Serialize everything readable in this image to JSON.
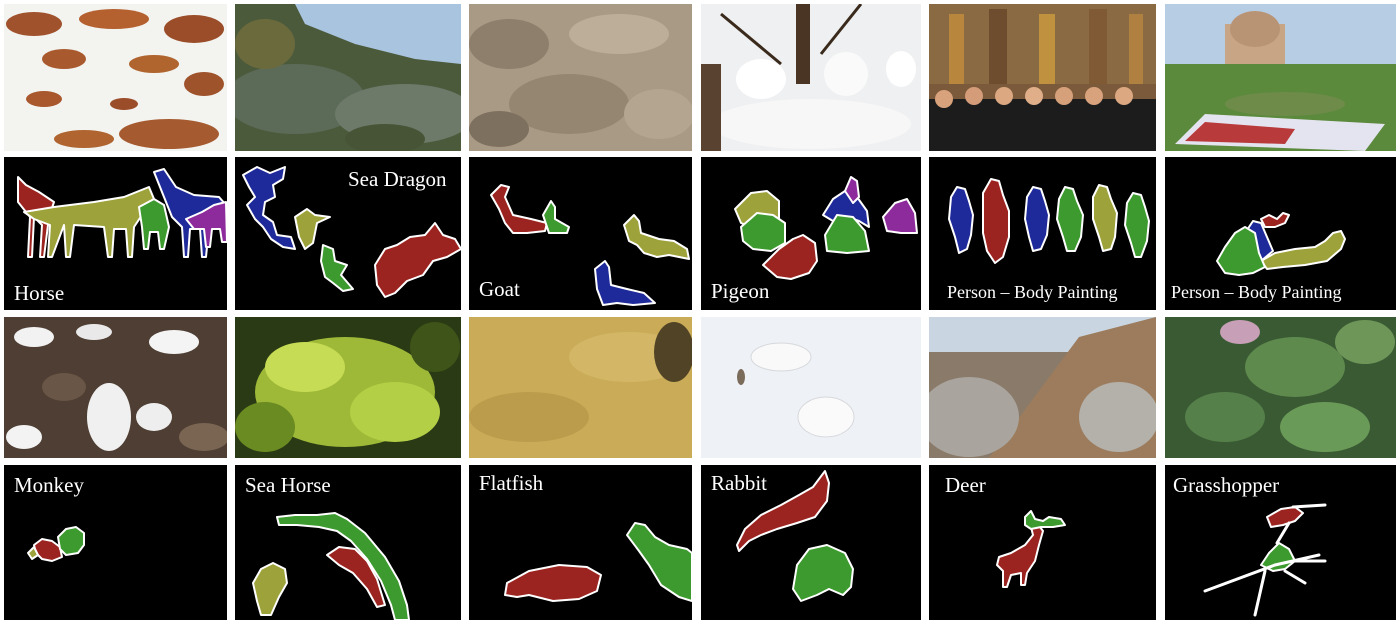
{
  "colors": {
    "red": "#9b2420",
    "green": "#3c9a2e",
    "olive": "#9da23a",
    "blue": "#1f2a9a",
    "purple": "#8d2b9c",
    "mask_bg": "#000000",
    "outline": "#ffffff"
  },
  "row1": {
    "labels": {
      "horse": "Horse",
      "sea_dragon": "Sea Dragon",
      "goat": "Goat",
      "pigeon": "Pigeon",
      "body_painting_1": "Person – Body Painting",
      "body_painting_2": "Person – Body Painting"
    }
  },
  "row2": {
    "labels": {
      "monkey": "Monkey",
      "sea_horse": "Sea Horse",
      "flatfish": "Flatfish",
      "rabbit": "Rabbit",
      "deer": "Deer",
      "grasshopper": "Grasshopper"
    }
  }
}
